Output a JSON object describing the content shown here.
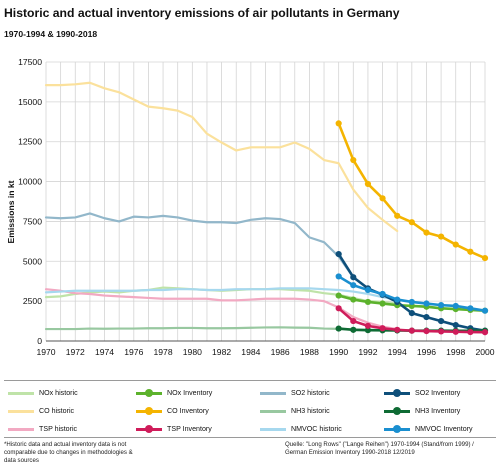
{
  "title": "Historic and actual inventory emissions of air pollutants in Germany",
  "subtitle": "1970-1994 & 1990-2018",
  "footnote": "*Historic data and actual inventory data is not comparable due to changes in methodologies & data sources",
  "source": "Quelle: \"Long Rows\" (\"Lange Reihen\") 1970-1994 (Stand/from 1999) / German Emission Inventory 1990-2018 12/2019",
  "chart_data": {
    "type": "line",
    "title": "Historic and actual inventory emissions of air pollutants in Germany",
    "subtitle": "1970-1994 & 1990-2018",
    "xlabel": "",
    "ylabel": "Emissions in kt",
    "xlim": [
      1970,
      2000
    ],
    "ylim": [
      0,
      17500
    ],
    "x_ticks": [
      "1970",
      "1972",
      "1974",
      "1976",
      "1978",
      "1980",
      "1982",
      "1984",
      "1986",
      "1988",
      "1990",
      "1992",
      "1994",
      "1996",
      "1998",
      "2000"
    ],
    "y_ticks": [
      "0",
      "2500",
      "5000",
      "7500",
      "10000",
      "12500",
      "15000",
      "17500"
    ],
    "grid": "vertical and horizontal",
    "legend_position": "bottom",
    "series": [
      {
        "name": "NOx historic",
        "color": "#bfe3a8",
        "markers": false,
        "x": [
          1970,
          1971,
          1972,
          1973,
          1974,
          1975,
          1976,
          1977,
          1978,
          1979,
          1980,
          1981,
          1982,
          1983,
          1984,
          1985,
          1986,
          1987,
          1988,
          1989,
          1990,
          1991,
          1992,
          1993,
          1994
        ],
        "y": [
          2750,
          2800,
          2950,
          3050,
          3100,
          3050,
          3150,
          3200,
          3350,
          3300,
          3250,
          3200,
          3150,
          3200,
          3250,
          3250,
          3250,
          3200,
          3150,
          3000,
          2900,
          2700,
          2500,
          2450,
          2350
        ]
      },
      {
        "name": "NOx Inventory",
        "color": "#5cb22c",
        "markers": true,
        "x": [
          1990,
          1991,
          1992,
          1993,
          1994,
          1995,
          1996,
          1997,
          1998,
          1999,
          2000
        ],
        "y": [
          2850,
          2600,
          2450,
          2350,
          2250,
          2200,
          2150,
          2050,
          2000,
          1950,
          1900
        ]
      },
      {
        "name": "SO2 historic",
        "color": "#92b7ca",
        "markers": false,
        "x": [
          1970,
          1971,
          1972,
          1973,
          1974,
          1975,
          1976,
          1977,
          1978,
          1979,
          1980,
          1981,
          1982,
          1983,
          1984,
          1985,
          1986,
          1987,
          1988,
          1989,
          1990,
          1991,
          1992,
          1993,
          1994
        ],
        "y": [
          7750,
          7700,
          7750,
          8000,
          7700,
          7500,
          7800,
          7750,
          7850,
          7750,
          7550,
          7450,
          7450,
          7400,
          7600,
          7700,
          7650,
          7400,
          6500,
          6200,
          5300,
          4000,
          3300,
          2900,
          2450
        ]
      },
      {
        "name": "SO2 Inventory",
        "color": "#0e4f7a",
        "markers": true,
        "x": [
          1990,
          1991,
          1992,
          1993,
          1994,
          1995,
          1996,
          1997,
          1998,
          1999,
          2000
        ],
        "y": [
          5450,
          4000,
          3300,
          2900,
          2450,
          1750,
          1500,
          1250,
          1000,
          800,
          650
        ]
      },
      {
        "name": "CO historic",
        "color": "#fbe19c",
        "markers": false,
        "x": [
          1970,
          1971,
          1972,
          1973,
          1974,
          1975,
          1976,
          1977,
          1978,
          1979,
          1980,
          1981,
          1982,
          1983,
          1984,
          1985,
          1986,
          1987,
          1988,
          1989,
          1990,
          1991,
          1992,
          1993,
          1994
        ],
        "y": [
          16050,
          16050,
          16100,
          16200,
          15850,
          15600,
          15150,
          14700,
          14600,
          14450,
          14050,
          13000,
          12450,
          11950,
          12150,
          12150,
          12150,
          12450,
          12050,
          11350,
          11150,
          9500,
          8350,
          7600,
          6900
        ]
      },
      {
        "name": "CO Inventory",
        "color": "#f4b400",
        "markers": true,
        "x": [
          1990,
          1991,
          1992,
          1993,
          1994,
          1995,
          1996,
          1997,
          1998,
          1999,
          2000
        ],
        "y": [
          13650,
          11350,
          9850,
          8950,
          7850,
          7450,
          6800,
          6550,
          6050,
          5600,
          5200
        ]
      },
      {
        "name": "NH3 historic",
        "color": "#98c8a0",
        "markers": false,
        "x": [
          1970,
          1971,
          1972,
          1973,
          1974,
          1975,
          1976,
          1977,
          1978,
          1979,
          1980,
          1981,
          1982,
          1983,
          1984,
          1985,
          1986,
          1987,
          1988,
          1989,
          1990,
          1991,
          1992,
          1993,
          1994
        ],
        "y": [
          750,
          750,
          750,
          780,
          770,
          780,
          780,
          800,
          800,
          820,
          820,
          800,
          800,
          810,
          830,
          850,
          860,
          840,
          830,
          780,
          760,
          720,
          700,
          680,
          670
        ]
      },
      {
        "name": "NH3 Inventory",
        "color": "#0e6b34",
        "markers": true,
        "x": [
          1990,
          1991,
          1992,
          1993,
          1994,
          1995,
          1996,
          1997,
          1998,
          1999,
          2000
        ],
        "y": [
          780,
          700,
          680,
          670,
          660,
          650,
          650,
          650,
          640,
          640,
          640
        ]
      },
      {
        "name": "TSP historic",
        "color": "#f2a9c2",
        "markers": false,
        "x": [
          1970,
          1971,
          1972,
          1973,
          1974,
          1975,
          1976,
          1977,
          1978,
          1979,
          1980,
          1981,
          1982,
          1983,
          1984,
          1985,
          1986,
          1987,
          1988,
          1989,
          1990,
          1991,
          1992,
          1993,
          1994
        ],
        "y": [
          3250,
          3150,
          3000,
          2950,
          2850,
          2800,
          2750,
          2700,
          2650,
          2650,
          2650,
          2650,
          2550,
          2550,
          2600,
          2650,
          2650,
          2650,
          2600,
          2500,
          2100,
          1500,
          1150,
          900,
          750
        ]
      },
      {
        "name": "TSP Inventory",
        "color": "#cf1c5a",
        "markers": true,
        "x": [
          1990,
          1991,
          1992,
          1993,
          1994,
          1995,
          1996,
          1997,
          1998,
          1999,
          2000
        ],
        "y": [
          2050,
          1250,
          950,
          800,
          700,
          650,
          620,
          600,
          580,
          560,
          550
        ]
      },
      {
        "name": "NMVOC historic",
        "color": "#a6d8ee",
        "markers": false,
        "x": [
          1970,
          1971,
          1972,
          1973,
          1974,
          1975,
          1976,
          1977,
          1978,
          1979,
          1980,
          1981,
          1982,
          1983,
          1984,
          1985,
          1986,
          1987,
          1988,
          1989,
          1990,
          1991,
          1992,
          1993,
          1994
        ],
        "y": [
          3050,
          3100,
          3150,
          3150,
          3150,
          3150,
          3150,
          3200,
          3200,
          3250,
          3250,
          3200,
          3200,
          3250,
          3250,
          3250,
          3300,
          3300,
          3300,
          3250,
          3200,
          3100,
          2950,
          2750,
          2600
        ]
      },
      {
        "name": "NMVOC Inventory",
        "color": "#1a8fd0",
        "markers": true,
        "x": [
          1990,
          1991,
          1992,
          1993,
          1994,
          1995,
          1996,
          1997,
          1998,
          1999,
          2000
        ],
        "y": [
          4050,
          3500,
          3200,
          2950,
          2600,
          2450,
          2350,
          2250,
          2200,
          2050,
          1900
        ]
      }
    ]
  }
}
